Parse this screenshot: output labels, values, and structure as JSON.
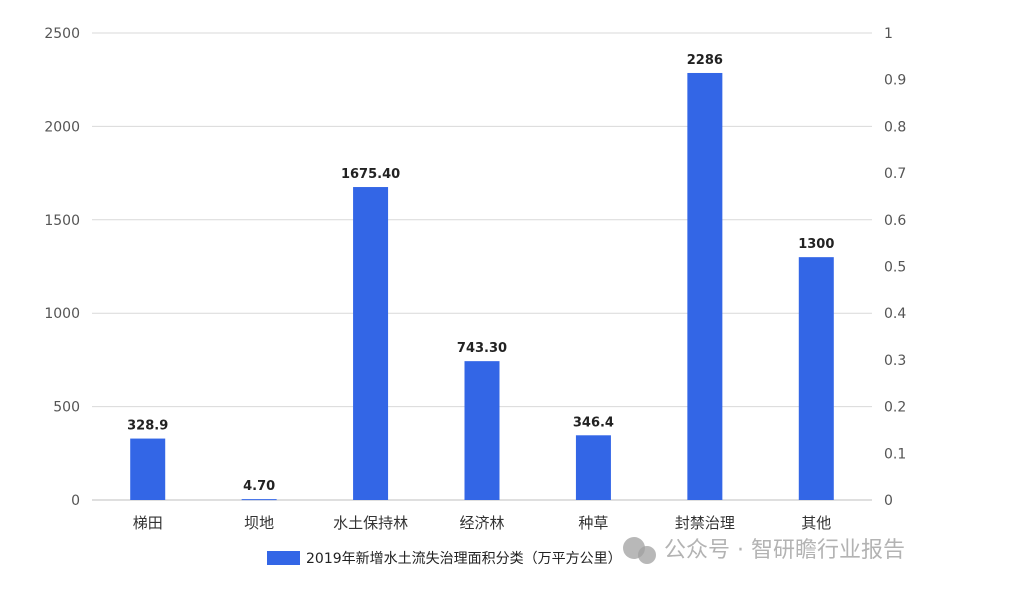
{
  "chart_data": {
    "type": "bar",
    "categories": [
      "梯田",
      "坝地",
      "水土保持林",
      "经济林",
      "种草",
      "封禁治理",
      "其他"
    ],
    "series": [
      {
        "name": "2019年新增水土流失治理面积分类（万平方公里）",
        "values": [
          328.9,
          4.7,
          1675.4,
          743.3,
          346.4,
          2286,
          1300
        ],
        "data_labels": [
          "328.9",
          "4.70",
          "1675.40",
          "743.30",
          "346.4",
          "2286",
          "1300"
        ]
      }
    ],
    "ylim": [
      0,
      2500
    ],
    "yticks": [
      "0",
      "500",
      "1000",
      "1500",
      "2000",
      "2500"
    ],
    "y2lim": [
      0,
      1
    ],
    "y2ticks": [
      "0",
      "0.1",
      "0.2",
      "0.3",
      "0.4",
      "0.5",
      "0.6",
      "0.7",
      "0.8",
      "0.9",
      "1"
    ],
    "grid": true,
    "legend_position": "bottom",
    "colors": {
      "bar": "#3366e6",
      "grid": "#d9d9d9"
    }
  },
  "watermark": {
    "text": "公众号 · 智研瞻行业报告",
    "icon": "wechat-icon"
  }
}
